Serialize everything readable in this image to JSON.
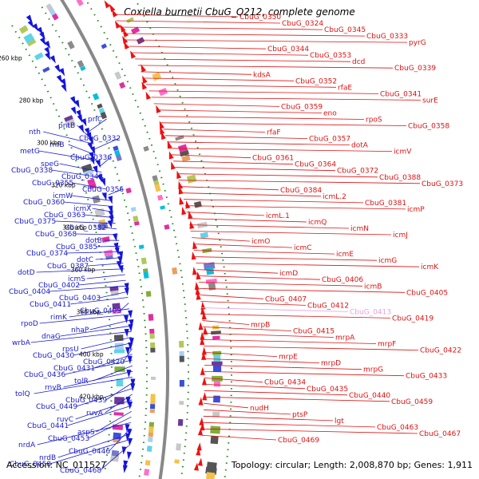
{
  "title": "Coxiella burnetii CbuG_Q212, complete genome",
  "footer": {
    "accession": "Accession: NC_011527",
    "summary": "Topology: circular; Length: 2,008,870 bp; Genes: 1,911"
  },
  "colors": {
    "left_labels": "#1a1acc",
    "right_labels": "#dd1111",
    "faded_label": "#e8a0e0",
    "backbone": "#888888",
    "tick_marks": "#228822"
  },
  "kbp_ticks": [
    "260 kbp",
    "280 kbp",
    "300 kbp",
    "320 kbp",
    "340 kbp",
    "360 kbp",
    "380 kbp",
    "400 kbp",
    "420 kbp"
  ],
  "left_labels": [
    "prlC",
    "pntB",
    "nth",
    "CbuG_0332",
    "rnfB",
    "metG",
    "CbuG_0336",
    "speG",
    "CbuG_0338",
    "CbuG_0342",
    "CbuG_0355",
    "CbuG_0356",
    "icmW",
    "CbuG_0360",
    "icmX",
    "CbuG_0363",
    "CbuG_0375",
    "CbuG_0382",
    "CbuG_0368",
    "dotB",
    "CbuG_0385",
    "CbuG_0374",
    "dotC",
    "CbuG_0387",
    "dotD",
    "icmS",
    "CbuG_0402",
    "CbuG_0404",
    "CbuG_0403",
    "CbuG_0411",
    "CbuG_0409",
    "rimK",
    "rpoD",
    "nhaP",
    "dnaG",
    "wrbA",
    "rpsU",
    "CbuG_0430",
    "CbuG_0420",
    "CbuG_0431",
    "CbuG_0436",
    "tolR",
    "rnvB",
    "tolQ",
    "CbuG_0439",
    "CbuG_0449",
    "ruvA",
    "ruvC",
    "CbuG_0441",
    "aspS",
    "CbuG_0453",
    "nrdA",
    "CbuG_0446",
    "nrdB",
    "CbuG_0458",
    "CbuG_0468"
  ],
  "right_labels": [
    "CbuG_0350",
    "CbuG_0324",
    "CbuG_0345",
    "CbuG_0333",
    "pyrG",
    "CbuG_0344",
    "CbuG_0353",
    "dcd",
    "CbuG_0339",
    "kdsA",
    "CbuG_0352",
    "rfaE",
    "CbuG_0341",
    "surE",
    "CbuG_0359",
    "eno",
    "rpoS",
    "CbuG_0358",
    "rfaF",
    "CbuG_0357",
    "dotA",
    "icmV",
    "CbuG_0361",
    "CbuG_0364",
    "CbuG_0372",
    "CbuG_0388",
    "CbuG_0373",
    "CbuG_0384",
    "icmL.2",
    "CbuG_0381",
    "icmP",
    "icmL.1",
    "icmQ",
    "icmN",
    "icmJ",
    "icmO",
    "icmC",
    "icmE",
    "icmG",
    "icmK",
    "icmD",
    "CbuG_0406",
    "icmB",
    "CbuG_0405",
    "CbuG_0407",
    "CbuG_0412",
    "CbuG_0413",
    "CbuG_0419",
    "mrpB",
    "CbuG_0415",
    "mrpA",
    "mrpF",
    "CbuG_0422",
    "mrpE",
    "mrpD",
    "mrpG",
    "CbuG_0433",
    "CbuG_0434",
    "CbuG_0435",
    "CbuG_0440",
    "CbuG_0459",
    "nudH",
    "ptsP",
    "lgt",
    "CbuG_0463",
    "CbuG_0467",
    "CbuG_0469"
  ]
}
